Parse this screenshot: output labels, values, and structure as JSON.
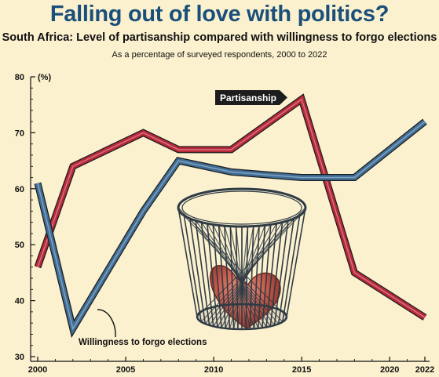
{
  "title": "Falling out of love with politics?",
  "subtitle": "South Africa: Level of partisanship compared with willingness to forgo elections",
  "note": "As a percentage of surveyed respondents, 2000 to 2022",
  "colors": {
    "background": "#fbf1cf",
    "title": "#1a4f7a",
    "partisanship": "#b8283a",
    "forgo": "#3f6e97"
  },
  "chart_data": {
    "type": "line",
    "title": "Falling out of love with politics?",
    "subtitle": "South Africa: Level of partisanship compared with willingness to forgo elections",
    "ylabel": "(%)",
    "xlabel": "",
    "ylim": [
      30,
      80
    ],
    "xlim": [
      2000,
      2022
    ],
    "yticks": [
      30,
      40,
      50,
      60,
      70,
      80
    ],
    "xticks": [
      2000,
      2005,
      2010,
      2015,
      2020,
      2022
    ],
    "grid": false,
    "series": [
      {
        "name": "Partisanship",
        "x": [
          2000,
          2002,
          2006,
          2008,
          2011,
          2015,
          2018,
          2022
        ],
        "values": [
          46,
          64,
          70,
          67,
          67,
          76,
          45,
          37
        ]
      },
      {
        "name": "Willingness to forgo elections",
        "x": [
          2000,
          2002,
          2006,
          2008,
          2011,
          2015,
          2018,
          2022
        ],
        "values": [
          61,
          35,
          56,
          65,
          63,
          62,
          62,
          72
        ]
      }
    ]
  }
}
